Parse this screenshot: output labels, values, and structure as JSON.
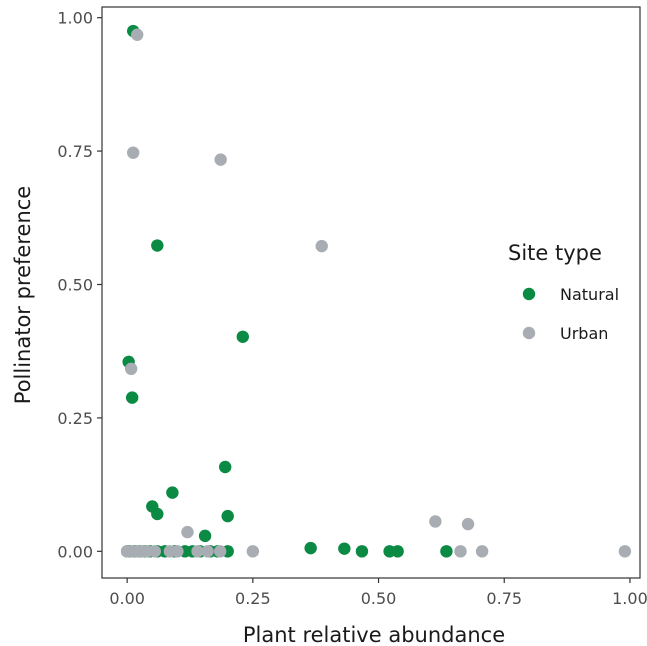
{
  "chart_data": {
    "type": "scatter",
    "title": "",
    "xlabel": "Plant relative abundance",
    "ylabel": "Pollinator preference",
    "xlim": [
      -0.05,
      1.02
    ],
    "ylim": [
      -0.05,
      1.02
    ],
    "x_ticks": [
      "0.00",
      "0.25",
      "0.50",
      "0.75",
      "1.00"
    ],
    "y_ticks": [
      "0.00",
      "0.25",
      "0.50",
      "0.75",
      "1.00"
    ],
    "grid": false,
    "legend": {
      "title": "Site type",
      "position": "right"
    },
    "series": [
      {
        "name": "Natural",
        "color": "#0b8a44",
        "points": [
          {
            "x": 0.012,
            "y": 0.975
          },
          {
            "x": 0.06,
            "y": 0.573
          },
          {
            "x": 0.23,
            "y": 0.402
          },
          {
            "x": 0.003,
            "y": 0.355
          },
          {
            "x": 0.01,
            "y": 0.288
          },
          {
            "x": 0.195,
            "y": 0.158
          },
          {
            "x": 0.09,
            "y": 0.11
          },
          {
            "x": 0.05,
            "y": 0.084
          },
          {
            "x": 0.06,
            "y": 0.07
          },
          {
            "x": 0.2,
            "y": 0.066
          },
          {
            "x": 0.155,
            "y": 0.029
          },
          {
            "x": 0.365,
            "y": 0.006
          },
          {
            "x": 0.432,
            "y": 0.005
          },
          {
            "x": 0.0,
            "y": 0.0
          },
          {
            "x": 0.005,
            "y": 0.0
          },
          {
            "x": 0.015,
            "y": 0.0
          },
          {
            "x": 0.025,
            "y": 0.0
          },
          {
            "x": 0.035,
            "y": 0.0
          },
          {
            "x": 0.045,
            "y": 0.0
          },
          {
            "x": 0.06,
            "y": 0.0
          },
          {
            "x": 0.075,
            "y": 0.0
          },
          {
            "x": 0.095,
            "y": 0.0
          },
          {
            "x": 0.115,
            "y": 0.0
          },
          {
            "x": 0.13,
            "y": 0.0
          },
          {
            "x": 0.145,
            "y": 0.0
          },
          {
            "x": 0.165,
            "y": 0.0
          },
          {
            "x": 0.18,
            "y": 0.0
          },
          {
            "x": 0.2,
            "y": 0.0
          },
          {
            "x": 0.467,
            "y": 0.0
          },
          {
            "x": 0.522,
            "y": 0.0
          },
          {
            "x": 0.538,
            "y": 0.0
          },
          {
            "x": 0.635,
            "y": 0.0
          }
        ]
      },
      {
        "name": "Urban",
        "color": "#a8adb3",
        "points": [
          {
            "x": 0.02,
            "y": 0.968
          },
          {
            "x": 0.012,
            "y": 0.747
          },
          {
            "x": 0.186,
            "y": 0.734
          },
          {
            "x": 0.387,
            "y": 0.572
          },
          {
            "x": 0.008,
            "y": 0.342
          },
          {
            "x": 0.613,
            "y": 0.056
          },
          {
            "x": 0.678,
            "y": 0.051
          },
          {
            "x": 0.12,
            "y": 0.036
          },
          {
            "x": 0.0,
            "y": 0.0
          },
          {
            "x": 0.01,
            "y": 0.0
          },
          {
            "x": 0.02,
            "y": 0.0
          },
          {
            "x": 0.03,
            "y": 0.0
          },
          {
            "x": 0.04,
            "y": 0.0
          },
          {
            "x": 0.055,
            "y": 0.0
          },
          {
            "x": 0.085,
            "y": 0.0
          },
          {
            "x": 0.1,
            "y": 0.0
          },
          {
            "x": 0.14,
            "y": 0.0
          },
          {
            "x": 0.16,
            "y": 0.0
          },
          {
            "x": 0.185,
            "y": 0.0
          },
          {
            "x": 0.25,
            "y": 0.0
          },
          {
            "x": 0.663,
            "y": 0.0
          },
          {
            "x": 0.706,
            "y": 0.0
          },
          {
            "x": 0.99,
            "y": 0.0
          }
        ]
      }
    ]
  }
}
